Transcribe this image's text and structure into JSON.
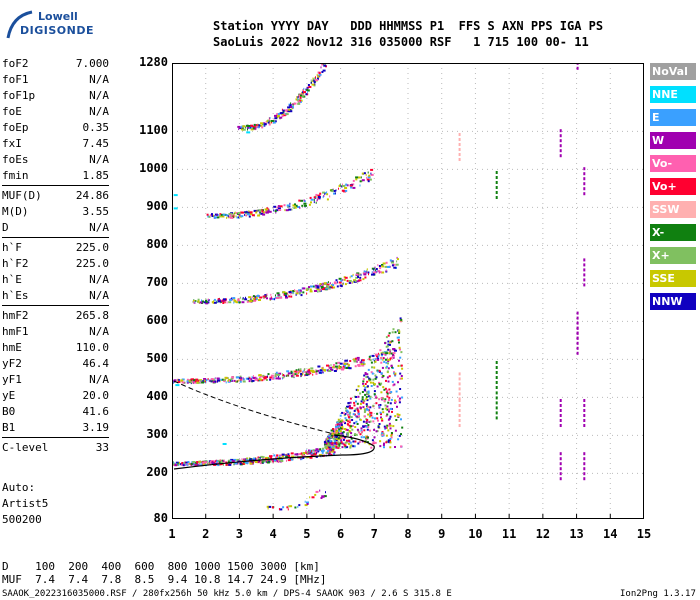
{
  "logo": {
    "line1": "Lowell",
    "line2": "DIGISONDE"
  },
  "header": {
    "row1": "Station YYYY DAY   DDD HHMMSS P1  FFS S AXN PPS IGA PS",
    "row2": "SaoLuis 2022 Nov12 316 035000 RSF   1 715 100 00- 11"
  },
  "params_group1": [
    {
      "name": "foF2",
      "value": "7.000"
    },
    {
      "name": "foF1",
      "value": "N/A"
    },
    {
      "name": "foF1p",
      "value": "N/A"
    },
    {
      "name": "foE",
      "value": "N/A"
    },
    {
      "name": "foEp",
      "value": "0.35"
    },
    {
      "name": "fxI",
      "value": "7.45"
    },
    {
      "name": "foEs",
      "value": "N/A"
    },
    {
      "name": "fmin",
      "value": "1.85"
    }
  ],
  "params_group2": [
    {
      "name": "MUF(D)",
      "value": "24.86"
    },
    {
      "name": "M(D)",
      "value": "3.55"
    },
    {
      "name": "D",
      "value": "N/A"
    }
  ],
  "params_group3": [
    {
      "name": "h`F",
      "value": "225.0"
    },
    {
      "name": "h`F2",
      "value": "225.0"
    },
    {
      "name": "h`E",
      "value": "N/A"
    },
    {
      "name": "h`Es",
      "value": "N/A"
    }
  ],
  "params_group4": [
    {
      "name": "hmF2",
      "value": "265.8"
    },
    {
      "name": "hmF1",
      "value": "N/A"
    },
    {
      "name": "hmE",
      "value": "110.0"
    },
    {
      "name": "yF2",
      "value": "46.4"
    },
    {
      "name": "yF1",
      "value": "N/A"
    },
    {
      "name": "yE",
      "value": "20.0"
    },
    {
      "name": "B0",
      "value": "41.6"
    },
    {
      "name": "B1",
      "value": "3.19"
    }
  ],
  "params_group5": [
    {
      "name": "C-level",
      "value": "33"
    }
  ],
  "auto": {
    "line1": "Auto:",
    "line2": "Artist5",
    "line3": "500200"
  },
  "y_ticks": [
    "1280",
    "1100",
    "1000",
    "900",
    "800",
    "700",
    "600",
    "500",
    "400",
    "300",
    "200",
    "80"
  ],
  "x_ticks": [
    "1",
    "2",
    "3",
    "4",
    "5",
    "6",
    "7",
    "8",
    "9",
    "10",
    "11",
    "12",
    "13",
    "14",
    "15"
  ],
  "legend": [
    {
      "label": "NoVal",
      "color": "#a0a0a0"
    },
    {
      "label": "NNE",
      "color": "#00e0ff"
    },
    {
      "label": "E",
      "color": "#3aa0ff"
    },
    {
      "label": "W",
      "color": "#a000b0"
    },
    {
      "label": "Vo-",
      "color": "#ff60b0"
    },
    {
      "label": "Vo+",
      "color": "#ff0030"
    },
    {
      "label": "SSW",
      "color": "#ffb0b0"
    },
    {
      "label": "X-",
      "color": "#108010"
    },
    {
      "label": "X+",
      "color": "#80c060"
    },
    {
      "label": "SSE",
      "color": "#c8c800"
    },
    {
      "label": "NNW",
      "color": "#1000c0"
    }
  ],
  "footer": {
    "d_row": "D    100  200  400  600  800 1000 1500 3000 [km]",
    "muf_row": "MUF  7.4  7.4  7.8  8.5  9.4 10.8 14.7 24.9 [MHz]",
    "bottom_left": "SAAOK_2022316035000.RSF / 280fx256h 50 kHz 5.0 km / DPS-4 SAAOK 903 / 2.6 S 315.8 E",
    "bottom_right": "Ion2Png 1.3.17"
  }
}
